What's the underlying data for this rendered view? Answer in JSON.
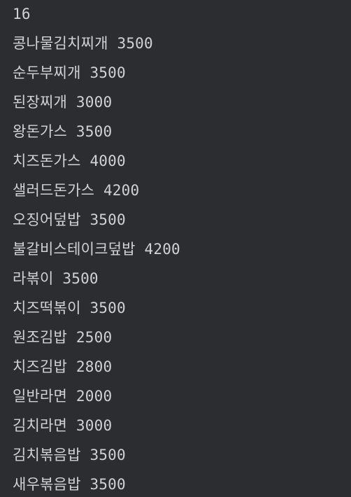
{
  "console": {
    "count": "16",
    "lines": [
      "콩나물김치찌개 3500",
      "순두부찌개 3500",
      "된장찌개 3000",
      "왕돈가스 3500",
      "치즈돈가스 4000",
      "샐러드돈가스 4200",
      "오징어덮밥 3500",
      "불갈비스테이크덮밥 4200",
      "라볶이 3500",
      "치즈떡볶이 3500",
      "원조김밥 2500",
      "치즈김밥 2800",
      "일반라면 2000",
      "김치라면 3000",
      "김치볶음밥 3500",
      "새우볶음밥 3500"
    ]
  }
}
